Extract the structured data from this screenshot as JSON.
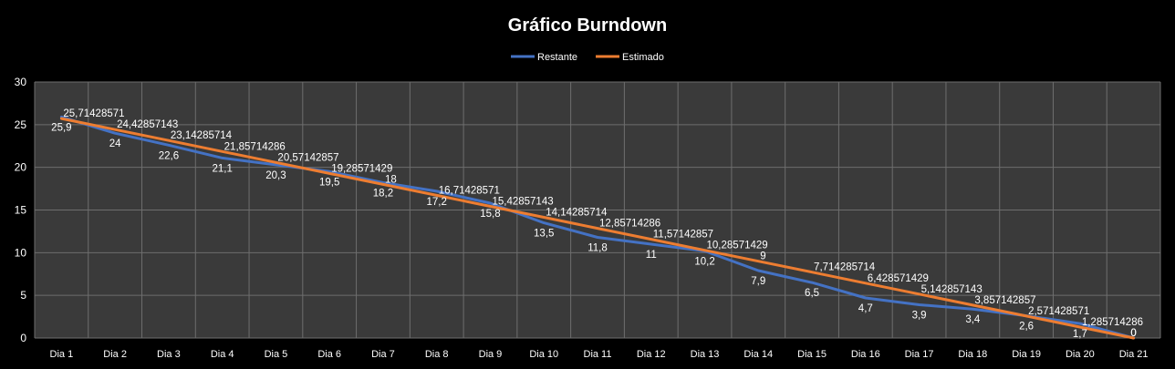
{
  "chart_data": {
    "type": "line",
    "title": "Gráfico Burndown",
    "xlabel": "",
    "ylabel": "",
    "ylim": [
      0,
      30
    ],
    "yticks": [
      0,
      5,
      10,
      15,
      20,
      25,
      30
    ],
    "grid": true,
    "legend_position": "top",
    "categories": [
      "Dia 1",
      "Dia 2",
      "Dia 3",
      "Dia 4",
      "Dia 5",
      "Dia 6",
      "Dia 7",
      "Dia 8",
      "Dia 9",
      "Dia 10",
      "Dia 11",
      "Dia 12",
      "Dia 13",
      "Dia 14",
      "Dia 15",
      "Dia 16",
      "Dia 17",
      "Dia 18",
      "Dia 19",
      "Dia 20",
      "Dia 21"
    ],
    "series": [
      {
        "name": "Restante",
        "color": "#4472C4",
        "values": [
          25.9,
          24,
          22.6,
          21.1,
          20.3,
          19.5,
          18.2,
          17.2,
          15.8,
          13.5,
          11.8,
          11,
          10.2,
          7.9,
          6.5,
          4.7,
          3.9,
          3.4,
          2.6,
          1.7,
          0
        ],
        "labels": [
          "25,9",
          "24",
          "22,6",
          "21,1",
          "20,3",
          "19,5",
          "18,2",
          "17,2",
          "15,8",
          "13,5",
          "11,8",
          "11",
          "10,2",
          "7,9",
          "6,5",
          "4,7",
          "3,9",
          "3,4",
          "2,6",
          "1,7",
          "0"
        ]
      },
      {
        "name": "Estimado",
        "color": "#ED7D31",
        "values": [
          25.71428571,
          24.42857143,
          23.14285714,
          21.85714286,
          20.57142857,
          19.28571429,
          18,
          16.71428571,
          15.42857143,
          14.14285714,
          12.85714286,
          11.57142857,
          10.28571429,
          9,
          7.714285714,
          6.428571429,
          5.142857143,
          3.857142857,
          2.571428571,
          1.285714286,
          0
        ],
        "labels": [
          "25,71428571",
          "24,42857143",
          "23,14285714",
          "21,85714286",
          "20,57142857",
          "19,28571429",
          "18",
          "16,71428571",
          "15,42857143",
          "14,14285714",
          "12,85714286",
          "11,57142857",
          "10,28571429",
          "9",
          "7,714285714",
          "6,428571429",
          "5,142857143",
          "3,857142857",
          "2,571428571",
          "1,285714286",
          "0"
        ]
      }
    ]
  },
  "colors": {
    "background": "#000000",
    "plot_area": "#3a3a3a",
    "grid": "#6e6e6e",
    "text": "#ffffff"
  }
}
